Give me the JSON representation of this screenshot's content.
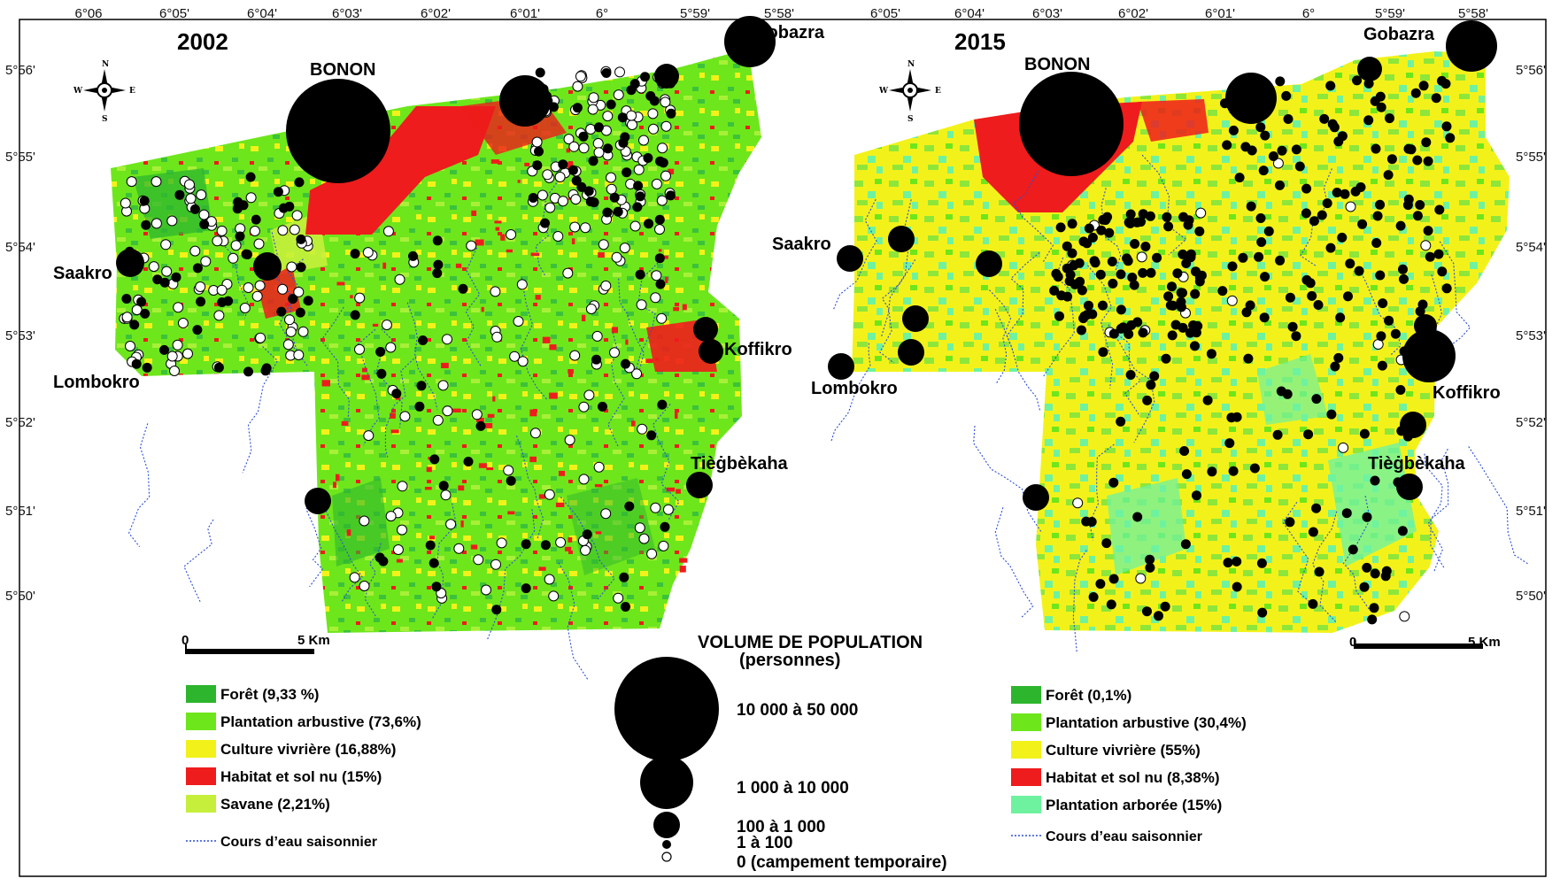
{
  "lon_ticks_left": [
    "6°06",
    "6°05'",
    "6°04'",
    "6°03'",
    "6°02'",
    "6°01'",
    "6°",
    "5°59'",
    "5°58'"
  ],
  "lon_ticks_right": [
    "6°05'",
    "6°04'",
    "6°03'",
    "6°02'",
    "6°01'",
    "6°",
    "5°59'",
    "5°58'"
  ],
  "lat_ticks_left": [
    "5°56'",
    "5°55'",
    "5°54'",
    "5°53'",
    "5°52'",
    "5°51'",
    "5°50'"
  ],
  "lat_ticks_right": [
    "5°56'",
    "5°55'",
    "5°54'",
    "5°53'",
    "5°52'",
    "5°51'",
    "5°50'"
  ],
  "map_left": {
    "year": "2002",
    "places": {
      "bonon": "BONON",
      "gobazra": "Gobazra",
      "saakro": "Saakro",
      "lombokro": "Lombokro",
      "koffikro": "Koffikro",
      "tiegbekaha": "Tièġbèkaha"
    },
    "scale": {
      "zero": "0",
      "end": "5 Km"
    }
  },
  "map_right": {
    "year": "2015",
    "places": {
      "bonon": "BONON",
      "gobazra": "Gobazra",
      "saakro": "Saakro",
      "lombokro": "Lombokro",
      "koffikro": "Koffikro",
      "tiegbekaha": "Tièġbèkaha"
    },
    "scale": {
      "zero": "0",
      "end": "5 Km"
    }
  },
  "compass": {
    "n": "N",
    "s": "S",
    "e": "E",
    "w": "W"
  },
  "legend_left": [
    {
      "label": "Forêt (9,33 %)",
      "color": "#2db52d"
    },
    {
      "label": "Plantation arbustive (73,6%)",
      "color": "#6ee61c"
    },
    {
      "label": "Culture vivrière (16,88%)",
      "color": "#f2f21a"
    },
    {
      "label": "Habitat et sol nu (15%)",
      "color": "#ee1c1c"
    },
    {
      "label": "Savane (2,21%)",
      "color": "#c6ef3c"
    }
  ],
  "legend_left_stream": "Cours d’eau saisonnier",
  "legend_right": [
    {
      "label": "Forêt (0,1%)",
      "color": "#2db52d"
    },
    {
      "label": "Plantation arbustive (30,4%)",
      "color": "#6ee61c"
    },
    {
      "label": "Culture vivrière (55%)",
      "color": "#f2f21a"
    },
    {
      "label": "Habitat et sol nu (8,38%)",
      "color": "#ee1c1c"
    },
    {
      "label": "Plantation arborée (15%)",
      "color": "#6ef2a0"
    }
  ],
  "legend_right_stream": "Cours d’eau saisonnier",
  "population_legend": {
    "title": "VOLUME DE POPULATION",
    "subtitle": "(personnes)",
    "classes": [
      "10 000 à 50 000",
      "1 000 à 10 000",
      "100 à 1 000",
      "1 à 100",
      "0 (campement temporaire)"
    ]
  },
  "colors": {
    "stream": "#2a4fd6",
    "frame": "#000000"
  }
}
